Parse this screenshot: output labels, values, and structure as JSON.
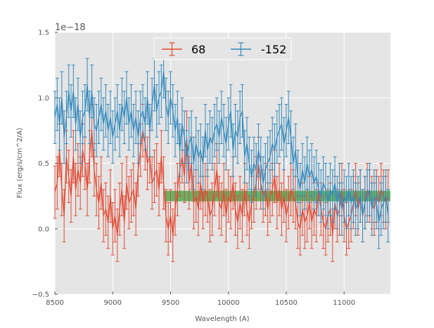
{
  "chart_data": {
    "type": "line",
    "title": "",
    "xlabel": "Wavelength (A)",
    "ylabel": "Flux (erg/s/cm^2/A)",
    "y_offset_label": "1e−18",
    "xlim": [
      8500,
      11400
    ],
    "ylim": [
      -0.5,
      1.5
    ],
    "xticks": [
      8500,
      9000,
      9500,
      10000,
      10500,
      11000
    ],
    "xtick_labels": [
      "8500",
      "9000",
      "9500",
      "10000",
      "10500",
      "11000"
    ],
    "yticks": [
      -0.5,
      0.0,
      0.5,
      1.0,
      1.5
    ],
    "ytick_labels": [
      "−0.5",
      "0.0",
      "0.5",
      "1.0",
      "1.5"
    ],
    "grid": true,
    "legend_position": "top-center",
    "x_start": 8500,
    "x_step": 20,
    "series": [
      {
        "name": "68",
        "color": "#e24a33",
        "yerr": 0.2,
        "values": [
          0.28,
          0.35,
          0.6,
          0.3,
          0.1,
          0.55,
          0.4,
          0.25,
          0.55,
          0.3,
          0.45,
          0.35,
          0.6,
          0.5,
          0.3,
          0.55,
          0.75,
          0.45,
          0.3,
          0.2,
          0.35,
          0.1,
          0.15,
          0.05,
          0.25,
          0.0,
          0.1,
          -0.05,
          0.15,
          0.3,
          0.05,
          0.35,
          0.2,
          0.25,
          0.3,
          0.15,
          0.45,
          0.6,
          0.75,
          0.65,
          0.5,
          0.55,
          0.35,
          0.4,
          0.45,
          0.3,
          0.55,
          0.35,
          0.1,
          0.0,
          0.1,
          -0.05,
          0.15,
          0.3,
          0.45,
          0.55,
          0.4,
          0.7,
          0.35,
          0.5,
          0.2,
          0.25,
          0.15,
          0.35,
          0.2,
          0.3,
          0.25,
          0.1,
          0.15,
          0.3,
          0.45,
          0.2,
          0.15,
          0.3,
          0.1,
          0.25,
          0.2,
          0.35,
          0.15,
          0.05,
          0.2,
          0.1,
          0.3,
          0.15,
          0.05,
          0.2,
          0.25,
          0.35,
          0.5,
          0.35,
          0.25,
          0.3,
          0.15,
          0.25,
          0.3,
          0.4,
          0.2,
          0.3,
          0.15,
          0.25,
          0.1,
          0.2,
          0.3,
          0.25,
          0.2,
          0.05,
          0.0,
          0.15,
          0.05,
          0.1,
          0.2,
          0.05,
          0.15,
          0.1,
          0.3,
          0.15,
          0.05,
          0.0,
          0.1,
          0.15,
          -0.05,
          0.2,
          0.1,
          0.15,
          0.3,
          0.1,
          0.0,
          0.05,
          0.1,
          0.2,
          0.3,
          0.15,
          0.25,
          0.1,
          0.2,
          0.3,
          0.25,
          0.2,
          0.15,
          0.25,
          0.2,
          0.3,
          0.25,
          0.2,
          0.25
        ]
      },
      {
        "name": "-152",
        "color": "#348abd",
        "yerr": 0.2,
        "values": [
          0.85,
          0.95,
          0.8,
          1.0,
          0.7,
          0.85,
          1.05,
          0.9,
          1.05,
          0.8,
          0.95,
          0.7,
          0.85,
          0.9,
          1.1,
          0.85,
          1.05,
          0.8,
          0.75,
          0.85,
          0.95,
          0.8,
          0.9,
          0.75,
          0.85,
          0.7,
          0.8,
          0.9,
          0.75,
          0.95,
          0.85,
          1.0,
          0.8,
          0.9,
          0.75,
          0.85,
          0.7,
          0.85,
          0.9,
          0.8,
          1.0,
          0.75,
          0.95,
          1.1,
          0.9,
          1.0,
          1.05,
          1.2,
          0.95,
          0.85,
          1.0,
          0.9,
          0.75,
          0.85,
          0.6,
          0.8,
          0.7,
          0.55,
          0.65,
          0.7,
          0.5,
          0.65,
          0.55,
          0.6,
          0.5,
          0.75,
          0.6,
          0.7,
          0.65,
          0.75,
          0.8,
          0.7,
          0.85,
          0.75,
          0.65,
          0.8,
          0.9,
          0.6,
          0.75,
          0.7,
          0.85,
          0.9,
          0.55,
          0.65,
          0.5,
          0.4,
          0.5,
          0.45,
          0.6,
          0.5,
          0.35,
          0.45,
          0.5,
          0.55,
          0.65,
          0.6,
          0.7,
          0.75,
          0.8,
          0.65,
          0.75,
          0.85,
          0.7,
          0.5,
          0.6,
          0.4,
          0.3,
          0.45,
          0.35,
          0.5,
          0.4,
          0.45,
          0.35,
          0.4,
          0.3,
          0.25,
          0.35,
          0.3,
          0.2,
          0.3,
          0.25,
          0.35,
          0.2,
          0.3,
          0.15,
          0.25,
          0.2,
          0.3,
          0.2,
          0.25,
          0.15,
          0.2,
          0.25,
          0.1,
          0.2,
          0.25,
          0.3,
          0.15,
          0.25,
          0.2,
          0.05,
          0.15,
          0.2,
          0.25,
          0.1
        ]
      }
    ],
    "band": {
      "color": "#2ca02c",
      "x_start": 9450,
      "x_end": 11400,
      "y_low": 0.21,
      "y_high": 0.29
    }
  }
}
